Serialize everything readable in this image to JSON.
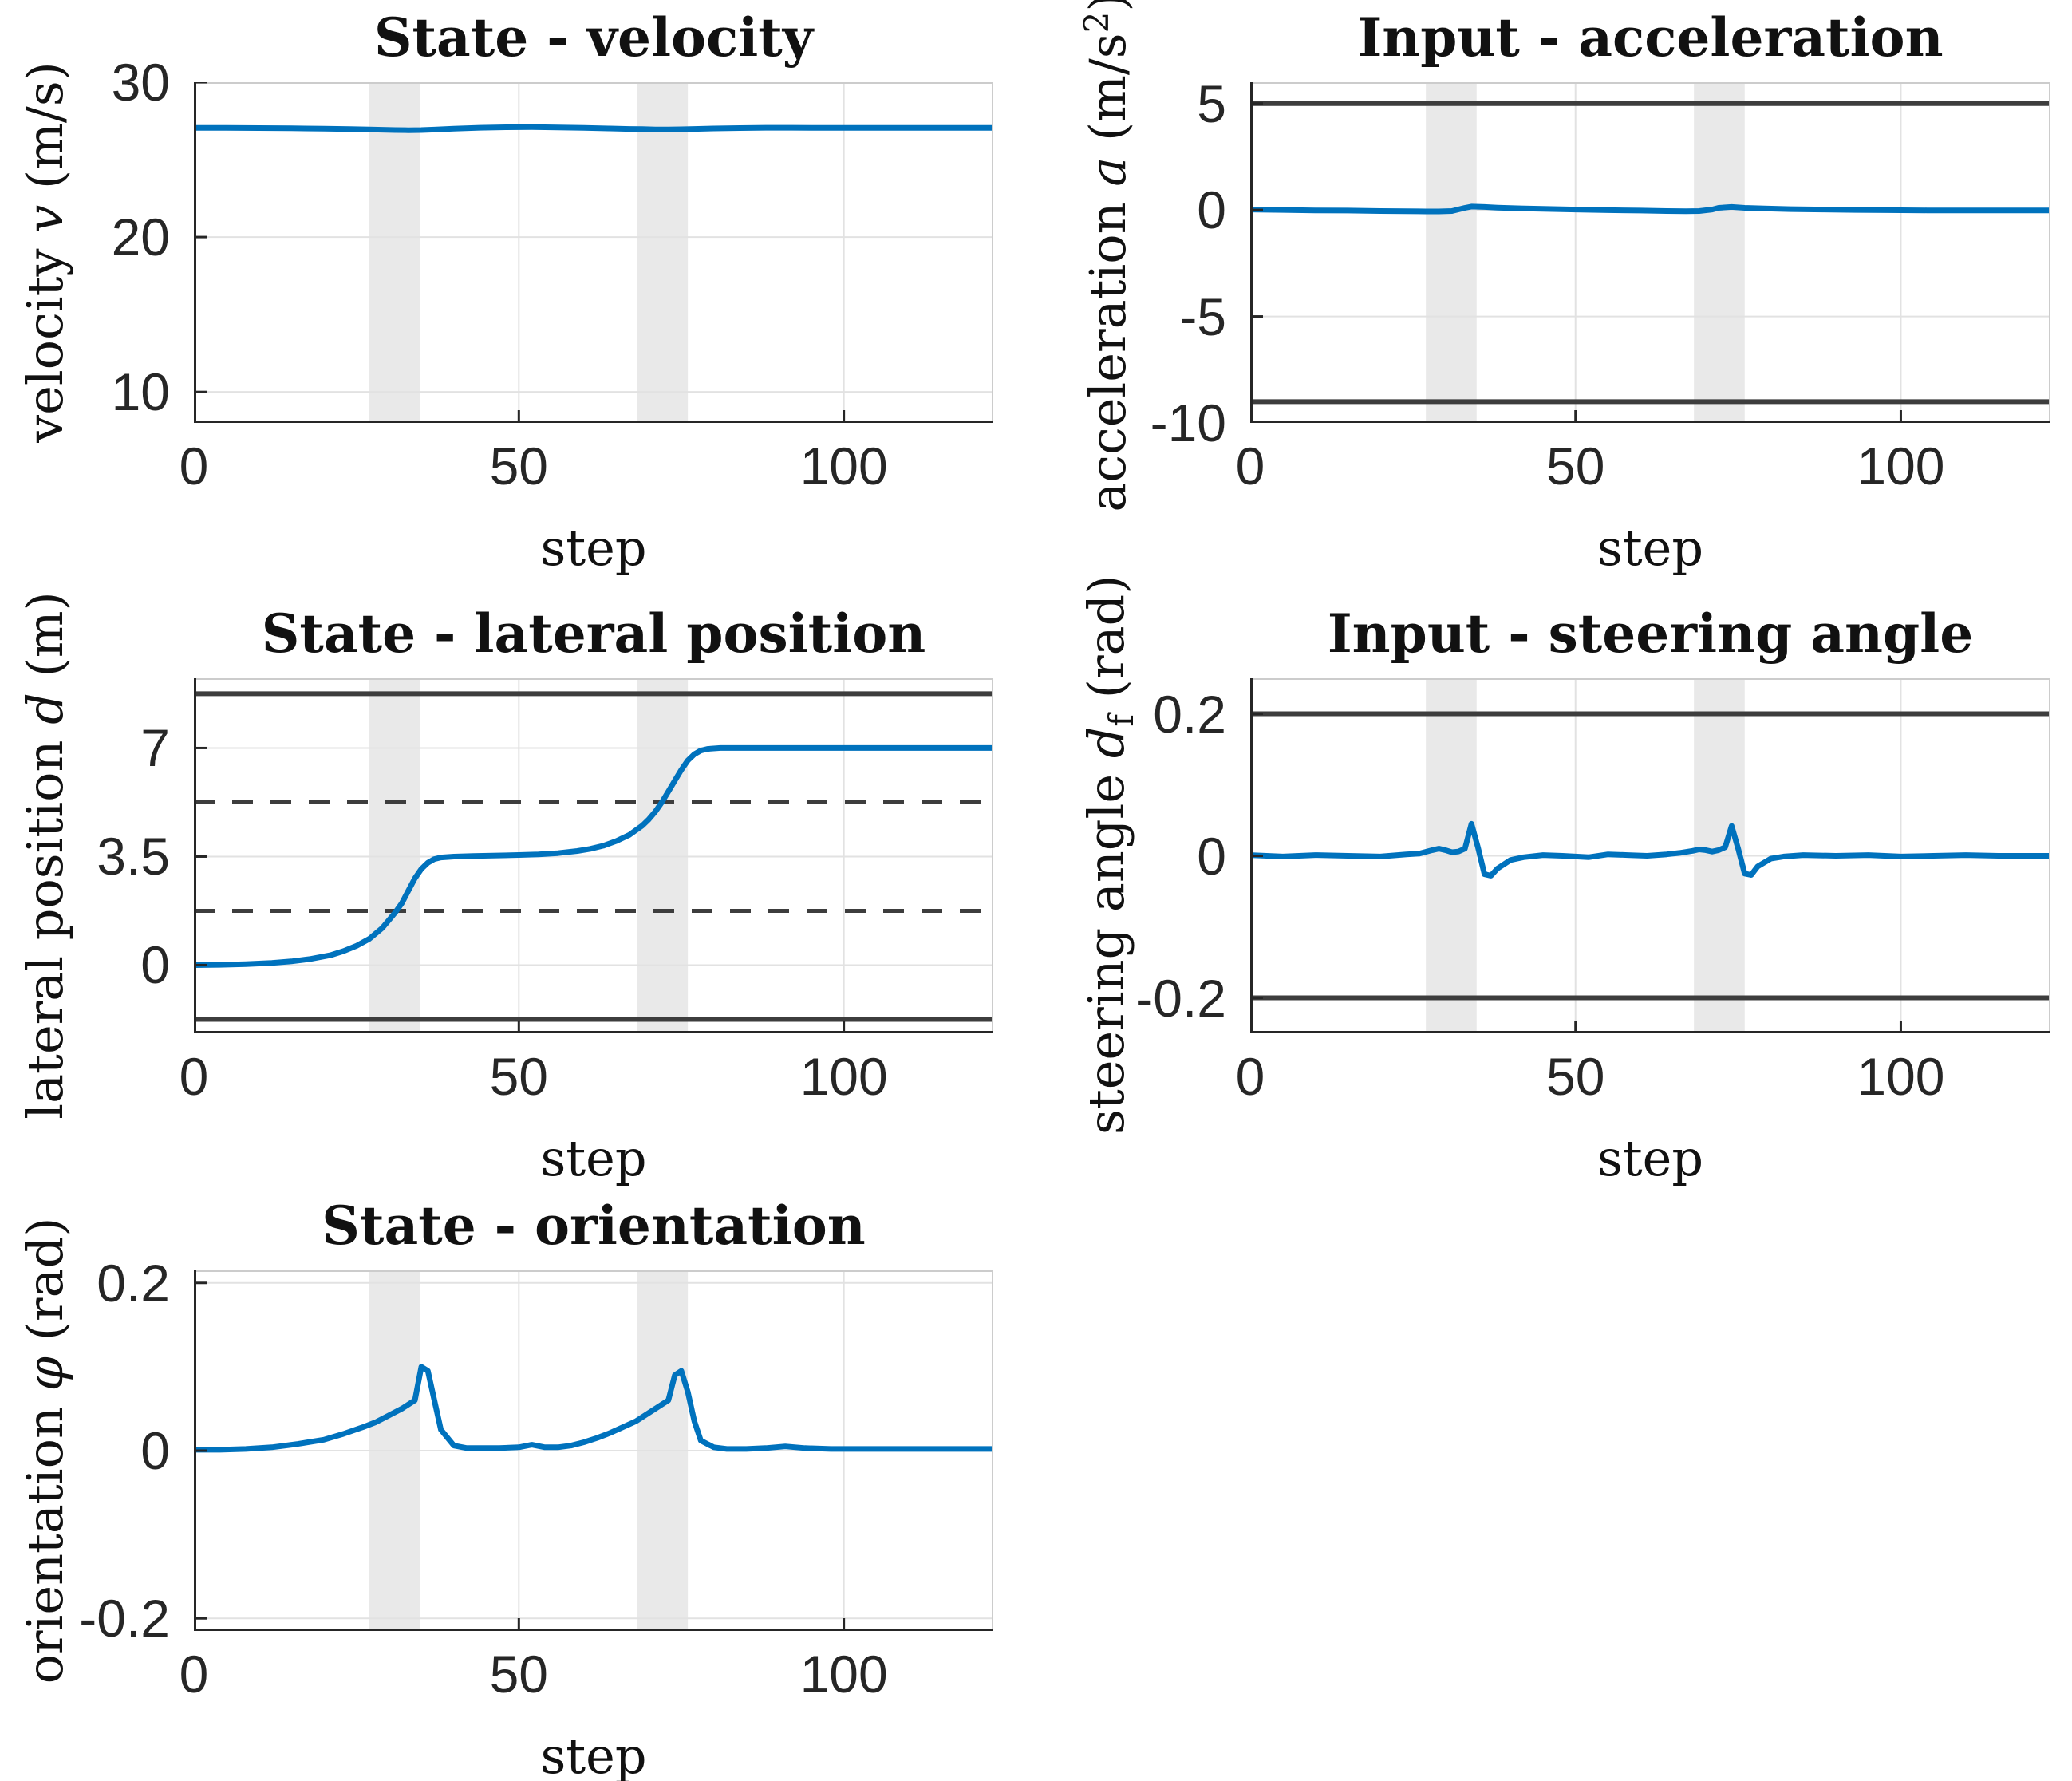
{
  "figure": {
    "background": "#ffffff"
  },
  "colors": {
    "line": "#0072bd",
    "bound": "#3d3d3d",
    "band": "#e9e9e9",
    "grid": "#e2e2e2",
    "spine_light": "#cccccc",
    "axis": "#262626",
    "text": "#262626"
  },
  "chart_data": [
    {
      "id": "velocity",
      "type": "line",
      "title": "State - velocity",
      "xlabel": "step",
      "ylabel_parts": [
        {
          "t": "velocity "
        },
        {
          "t": "v",
          "i": true
        },
        {
          "t": " (m/s)"
        }
      ],
      "xlim": [
        0,
        123
      ],
      "ylim": [
        8,
        30
      ],
      "grid": true,
      "xticks": {
        "values": [
          0,
          50,
          100
        ],
        "labels": [
          "0",
          "50",
          "100"
        ]
      },
      "yticks": {
        "values": [
          10,
          20,
          30
        ],
        "labels": [
          "10",
          "20",
          "30"
        ]
      },
      "highlight_bands": [
        [
          27,
          34.8
        ],
        [
          68.2,
          76
        ]
      ],
      "bounds_solid": [],
      "bounds_dashed": [],
      "x": [
        0,
        5,
        10,
        15,
        20,
        24,
        27,
        29,
        31,
        33,
        35,
        37,
        40,
        44,
        48,
        52,
        56,
        60,
        64,
        67,
        69,
        71,
        73,
        75,
        77,
        80,
        84,
        88,
        92,
        96,
        100,
        105,
        110,
        115,
        120,
        123
      ],
      "y": [
        27.05,
        27.05,
        27.04,
        27.02,
        27.0,
        26.97,
        26.95,
        26.93,
        26.91,
        26.9,
        26.91,
        26.94,
        27.0,
        27.06,
        27.09,
        27.1,
        27.08,
        27.05,
        27.01,
        26.98,
        26.97,
        26.95,
        26.95,
        26.96,
        26.98,
        27.01,
        27.04,
        27.06,
        27.06,
        27.05,
        27.05,
        27.05,
        27.05,
        27.05,
        27.05,
        27.05
      ]
    },
    {
      "id": "acceleration",
      "type": "line",
      "title": "Input - acceleration",
      "xlabel": "step",
      "ylabel_parts": [
        {
          "t": "acceleration "
        },
        {
          "t": "a",
          "i": true
        },
        {
          "t": " (m/s"
        },
        {
          "t": "2",
          "sup": true
        },
        {
          "t": ")"
        }
      ],
      "xlim": [
        0,
        123
      ],
      "ylim": [
        -10,
        6
      ],
      "grid": true,
      "xticks": {
        "values": [
          0,
          50,
          100
        ],
        "labels": [
          "0",
          "50",
          "100"
        ]
      },
      "yticks": {
        "values": [
          -10,
          -5,
          0,
          5
        ],
        "labels": [
          "-10",
          "-5",
          "0",
          "5"
        ]
      },
      "highlight_bands": [
        [
          27,
          34.8
        ],
        [
          68.2,
          76
        ]
      ],
      "bounds_solid": [
        5,
        -9
      ],
      "bounds_dashed": [],
      "x": [
        0,
        5,
        10,
        15,
        20,
        24,
        27,
        29,
        31,
        33,
        34,
        36,
        38,
        41,
        45,
        50,
        55,
        60,
        64,
        67,
        69,
        71,
        72,
        74,
        76,
        79,
        83,
        88,
        93,
        98,
        104,
        110,
        116,
        123
      ],
      "y": [
        0.02,
        0.0,
        -0.02,
        -0.03,
        -0.05,
        -0.06,
        -0.07,
        -0.07,
        -0.05,
        0.1,
        0.16,
        0.14,
        0.11,
        0.08,
        0.05,
        0.02,
        -0.01,
        -0.03,
        -0.05,
        -0.06,
        -0.05,
        0.02,
        0.1,
        0.14,
        0.1,
        0.07,
        0.04,
        0.02,
        0.0,
        -0.01,
        -0.02,
        -0.02,
        -0.02,
        -0.02
      ]
    },
    {
      "id": "lateral",
      "type": "line",
      "title": "State - lateral position",
      "xlabel": "step",
      "ylabel_parts": [
        {
          "t": "lateral position "
        },
        {
          "t": "d",
          "i": true
        },
        {
          "t": " (m)"
        }
      ],
      "xlim": [
        0,
        123
      ],
      "ylim": [
        -2.2,
        9.25
      ],
      "grid": true,
      "xticks": {
        "values": [
          0,
          50,
          100
        ],
        "labels": [
          "0",
          "50",
          "100"
        ]
      },
      "yticks": {
        "values": [
          0,
          3.5,
          7
        ],
        "labels": [
          "0",
          "3.5",
          "7"
        ]
      },
      "highlight_bands": [
        [
          27,
          34.8
        ],
        [
          68.2,
          76
        ]
      ],
      "bounds_solid": [
        8.75,
        -1.75
      ],
      "bounds_dashed": [
        5.25,
        1.75
      ],
      "x": [
        0,
        4,
        8,
        12,
        15,
        18,
        21,
        23,
        25,
        27,
        29,
        30,
        31,
        32,
        33,
        34,
        35,
        36,
        37,
        38,
        40,
        43,
        46,
        50,
        53,
        56,
        59,
        61,
        63,
        65,
        67,
        69,
        70,
        71,
        72,
        73,
        74,
        75,
        76,
        77,
        78,
        79,
        81,
        84,
        88,
        93,
        100,
        108,
        116,
        123
      ],
      "y": [
        0.0,
        0.01,
        0.03,
        0.07,
        0.12,
        0.2,
        0.32,
        0.45,
        0.62,
        0.85,
        1.2,
        1.45,
        1.7,
        2.0,
        2.4,
        2.8,
        3.1,
        3.3,
        3.42,
        3.47,
        3.5,
        3.52,
        3.53,
        3.55,
        3.57,
        3.61,
        3.68,
        3.75,
        3.85,
        4.0,
        4.2,
        4.5,
        4.7,
        4.95,
        5.25,
        5.6,
        5.95,
        6.3,
        6.6,
        6.8,
        6.92,
        6.97,
        7.0,
        7.0,
        7.0,
        7.0,
        7.0,
        7.0,
        7.0,
        7.0
      ]
    },
    {
      "id": "steering",
      "type": "line",
      "title": "Input - steering angle",
      "xlabel": "step",
      "ylabel_parts": [
        {
          "t": "steering angle "
        },
        {
          "t": "d",
          "i": true
        },
        {
          "t": "f",
          "sub": true
        },
        {
          "t": " (rad)"
        }
      ],
      "xlim": [
        0,
        123
      ],
      "ylim": [
        -0.25,
        0.25
      ],
      "grid": true,
      "xticks": {
        "values": [
          0,
          50,
          100
        ],
        "labels": [
          "0",
          "50",
          "100"
        ]
      },
      "yticks": {
        "values": [
          -0.2,
          0,
          0.2
        ],
        "labels": [
          "-0.2",
          "0",
          "0.2"
        ]
      },
      "highlight_bands": [
        [
          27,
          34.8
        ],
        [
          68.2,
          76
        ]
      ],
      "bounds_solid": [
        0.2,
        -0.2
      ],
      "bounds_dashed": [],
      "x": [
        0,
        5,
        10,
        15,
        20,
        24,
        26,
        28,
        29,
        30,
        31,
        32,
        33,
        34,
        35,
        36,
        37,
        38,
        40,
        42,
        45,
        48,
        52,
        55,
        58,
        61,
        64,
        66,
        68,
        69,
        70,
        71,
        72,
        73,
        74,
        75,
        76,
        77,
        78,
        80,
        82,
        85,
        90,
        95,
        100,
        105,
        110,
        115,
        120,
        123
      ],
      "y": [
        0.001,
        -0.001,
        0.001,
        0.0,
        -0.001,
        0.002,
        0.003,
        0.008,
        0.01,
        0.008,
        0.005,
        0.006,
        0.01,
        0.045,
        0.012,
        -0.026,
        -0.028,
        -0.018,
        -0.006,
        -0.002,
        0.001,
        0.0,
        -0.002,
        0.002,
        0.001,
        0.0,
        0.002,
        0.004,
        0.007,
        0.009,
        0.008,
        0.006,
        0.008,
        0.012,
        0.042,
        0.01,
        -0.025,
        -0.027,
        -0.015,
        -0.004,
        -0.001,
        0.001,
        0.0,
        0.001,
        -0.001,
        0.0,
        0.001,
        0.0,
        0.0,
        0.0
      ]
    },
    {
      "id": "orientation",
      "type": "line",
      "title": "State - orientation",
      "xlabel": "step",
      "ylabel_parts": [
        {
          "t": "orientation "
        },
        {
          "t": "φ",
          "i": true
        },
        {
          "t": " (rad)"
        }
      ],
      "xlim": [
        0,
        123
      ],
      "ylim": [
        -0.215,
        0.215
      ],
      "grid": true,
      "xticks": {
        "values": [
          0,
          50,
          100
        ],
        "labels": [
          "0",
          "50",
          "100"
        ]
      },
      "yticks": {
        "values": [
          -0.2,
          0,
          0.2
        ],
        "labels": [
          "-0.2",
          "0",
          "0.2"
        ]
      },
      "highlight_bands": [
        [
          27,
          34.8
        ],
        [
          68.2,
          76
        ]
      ],
      "bounds_solid": [],
      "bounds_dashed": [],
      "x": [
        0,
        4,
        8,
        12,
        16,
        20,
        23,
        26,
        28,
        30,
        32,
        33,
        34,
        35,
        36,
        37,
        38,
        40,
        42,
        44,
        47,
        50,
        52,
        54,
        56,
        58,
        60,
        62,
        64,
        66,
        68,
        70,
        71,
        72,
        73,
        74,
        75,
        76,
        77,
        78,
        80,
        82,
        85,
        88,
        91,
        94,
        98,
        103,
        108,
        113,
        118,
        123
      ],
      "y": [
        0.001,
        0.001,
        0.002,
        0.004,
        0.008,
        0.013,
        0.02,
        0.028,
        0.034,
        0.042,
        0.05,
        0.055,
        0.06,
        0.1,
        0.095,
        0.06,
        0.025,
        0.006,
        0.003,
        0.003,
        0.003,
        0.004,
        0.007,
        0.004,
        0.004,
        0.006,
        0.01,
        0.015,
        0.021,
        0.028,
        0.035,
        0.045,
        0.05,
        0.055,
        0.06,
        0.09,
        0.095,
        0.07,
        0.035,
        0.012,
        0.004,
        0.002,
        0.002,
        0.003,
        0.005,
        0.003,
        0.002,
        0.002,
        0.002,
        0.002,
        0.002,
        0.002
      ]
    }
  ]
}
